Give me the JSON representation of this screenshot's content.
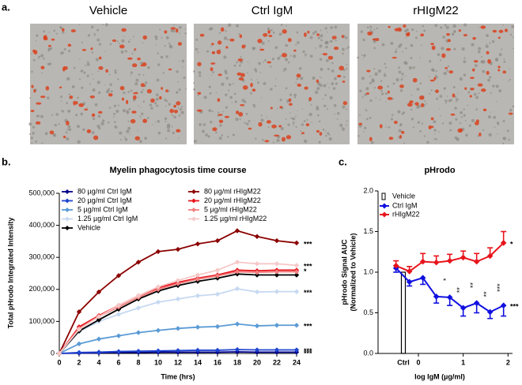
{
  "panel_labels": [
    "a.",
    "b.",
    "c."
  ],
  "images": [
    {
      "title": "Vehicle"
    },
    {
      "title": "Ctrl IgM"
    },
    {
      "title": "rHIgM22"
    }
  ],
  "chart_data": [
    {
      "type": "line",
      "title": "Myelin phagocytosis time course",
      "xlabel": "Time (hrs)",
      "ylabel": "Total pHrodo Integrated Intensity",
      "x": [
        0,
        2,
        4,
        6,
        8,
        10,
        12,
        14,
        16,
        18,
        20,
        22,
        24
      ],
      "xlim": [
        0,
        24
      ],
      "xticks": [
        0,
        2,
        4,
        6,
        8,
        10,
        12,
        14,
        16,
        18,
        20,
        22,
        24
      ],
      "ylim": [
        0,
        500000
      ],
      "yticks": [
        0,
        {
          "value": 100000,
          "label": "100,000"
        },
        {
          "value": 200000,
          "label": "200,000"
        },
        {
          "value": 300000,
          "label": "300,000"
        },
        {
          "value": 400000,
          "label": "400,000"
        },
        {
          "value": 500000,
          "label": "500,000"
        }
      ],
      "series": [
        {
          "name": "80 µg/ml Ctrl IgM",
          "color": "#00008b",
          "significance": "***",
          "values": [
            0,
            1000,
            2000,
            3000,
            3000,
            4000,
            4000,
            4000,
            4000,
            5000,
            4000,
            4000,
            4000
          ]
        },
        {
          "name": "20 µg/ml Ctrl IgM",
          "color": "#1f45d0",
          "significance": "***",
          "values": [
            0,
            3000,
            4000,
            6000,
            7000,
            8000,
            9000,
            10000,
            10000,
            12000,
            11000,
            11000,
            11000
          ]
        },
        {
          "name": "5 µg/ml Ctrl IgM",
          "color": "#5b9bd5",
          "significance": "***",
          "values": [
            0,
            30000,
            45000,
            55000,
            65000,
            72000,
            78000,
            82000,
            84000,
            92000,
            86000,
            88000,
            88000
          ]
        },
        {
          "name": "1.25 µg/ml Ctrl IgM",
          "color": "#c6d9f1",
          "significance": "***",
          "values": [
            0,
            68000,
            100000,
            122000,
            142000,
            160000,
            170000,
            180000,
            185000,
            202000,
            192000,
            193000,
            193000
          ]
        },
        {
          "name": "Vehicle",
          "color": "#000000",
          "values": [
            0,
            70000,
            105000,
            138000,
            170000,
            195000,
            212000,
            225000,
            235000,
            248000,
            245000,
            245000,
            245000
          ]
        },
        {
          "name": "80 µg/ml rHIgM22",
          "color": "#8b0000",
          "significance": "***",
          "values": [
            0,
            130000,
            192000,
            243000,
            285000,
            318000,
            325000,
            342000,
            352000,
            383000,
            365000,
            352000,
            345000
          ]
        },
        {
          "name": "20 µg/ml rHIgM22",
          "color": "#e8141c",
          "significance": "*",
          "values": [
            0,
            83000,
            118000,
            150000,
            180000,
            205000,
            222000,
            235000,
            245000,
            260000,
            258000,
            260000,
            260000
          ]
        },
        {
          "name": "5 µg/ml rHIgM22",
          "color": "#f08080",
          "values": [
            0,
            78000,
            115000,
            145000,
            175000,
            200000,
            218000,
            232000,
            242000,
            255000,
            253000,
            255000,
            255000
          ]
        },
        {
          "name": "1.25 µg/ml rHIgM22",
          "color": "#f6c8c8",
          "significance": "***",
          "values": [
            0,
            75000,
            115000,
            150000,
            180000,
            208000,
            228000,
            245000,
            260000,
            285000,
            280000,
            280000,
            275000
          ]
        }
      ]
    },
    {
      "type": "line",
      "title": "pHrodo",
      "xlabel": "log IgM (µg/ml)",
      "ylabel": [
        "pHrodo Signal AUC",
        "(Normalized to Vehicle)"
      ],
      "xlim": [
        -0.9,
        2.1
      ],
      "xticks": [
        0,
        1,
        2
      ],
      "ylim": [
        0,
        2
      ],
      "yticks": [
        {
          "value": 0,
          "label": "0.0"
        },
        {
          "value": 0.5,
          "label": "0.5"
        },
        {
          "value": 1,
          "label": "1.0"
        },
        {
          "value": 1.5,
          "label": "1.5"
        },
        {
          "value": 2,
          "label": "2.0"
        }
      ],
      "control": {
        "name": "Vehicle",
        "category": "Ctrl",
        "value": 1,
        "color": "#000000"
      },
      "x": [
        -0.5,
        -0.2,
        0.1,
        0.4,
        0.7,
        1.0,
        1.3,
        1.6,
        1.9
      ],
      "series": [
        {
          "name": "Ctrl IgM",
          "color": "#1010e0",
          "error_side": "down",
          "significance": "***",
          "values": [
            1.05,
            0.88,
            0.93,
            0.7,
            0.69,
            0.56,
            0.62,
            0.51,
            0.59
          ],
          "errors": [
            0.05,
            0.05,
            0.08,
            0.08,
            0.1,
            0.1,
            0.12,
            0.08,
            0.13
          ],
          "point_labels": [
            null,
            null,
            null,
            null,
            "*",
            "**",
            "**",
            "**",
            "***"
          ]
        },
        {
          "name": "rHIgM22",
          "color": "#e8141c",
          "error_side": "up",
          "significance": "*",
          "values": [
            1.08,
            1.01,
            1.13,
            1.12,
            1.14,
            1.18,
            1.13,
            1.2,
            1.36
          ],
          "errors": [
            0.06,
            0.06,
            0.1,
            0.08,
            0.08,
            0.08,
            0.1,
            0.1,
            0.14
          ]
        }
      ]
    }
  ]
}
